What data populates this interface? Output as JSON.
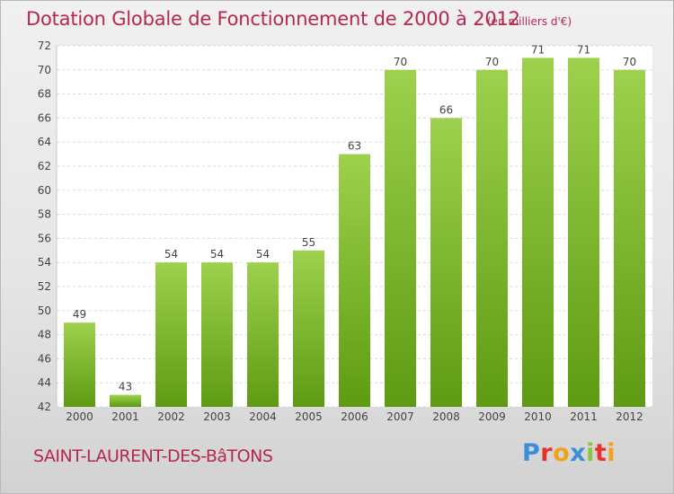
{
  "header": {
    "title": "Dotation Globale de Fonctionnement de 2000 à 2012",
    "unit": "(en milliers d'€)"
  },
  "footer": {
    "commune": "SAINT-LAURENT-DES-BâTONS",
    "logo_letters": [
      "P",
      "r",
      "o",
      "x",
      "i",
      "t",
      "i"
    ],
    "logo_colors": [
      "#3a8fd6",
      "#e8312c",
      "#f0a21a",
      "#3a8fd6",
      "#8cc63f",
      "#e8312c",
      "#f0a21a"
    ]
  },
  "colors": {
    "bar_top": "#9dd14e",
    "bar_bottom": "#5e9b12",
    "title": "#b5294d"
  },
  "chart_data": {
    "type": "bar",
    "categories": [
      "2000",
      "2001",
      "2002",
      "2003",
      "2004",
      "2005",
      "2006",
      "2007",
      "2008",
      "2009",
      "2010",
      "2011",
      "2012"
    ],
    "values": [
      49,
      43,
      54,
      54,
      54,
      55,
      63,
      70,
      66,
      70,
      71,
      71,
      70
    ],
    "data_labels": [
      "49",
      "43",
      "54",
      "54",
      "54",
      "55",
      "63",
      "70",
      "66",
      "70",
      "71",
      "71",
      "70"
    ],
    "ylim": [
      42,
      72
    ],
    "yticks": [
      42,
      44,
      46,
      48,
      50,
      52,
      54,
      56,
      58,
      60,
      62,
      64,
      66,
      68,
      70,
      72
    ],
    "ytick_labels": [
      "42",
      "44",
      "46",
      "48",
      "50",
      "52",
      "54",
      "56",
      "58",
      "60",
      "62",
      "64",
      "66",
      "68",
      "70",
      "72"
    ],
    "grid": true,
    "xlabel": "",
    "ylabel": ""
  }
}
